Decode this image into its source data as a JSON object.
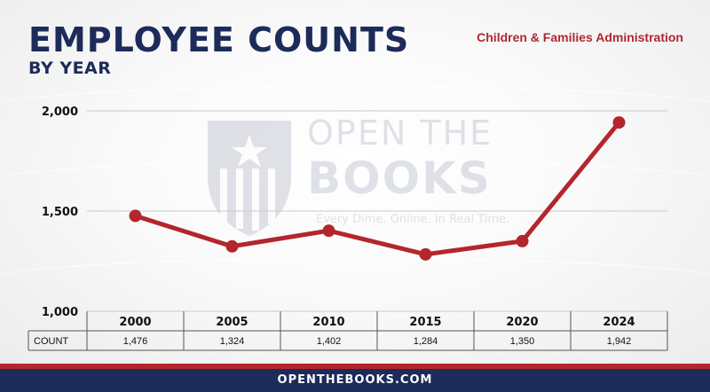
{
  "header": {
    "title": "EMPLOYEE COUNTS",
    "subtitle": "BY YEAR",
    "agency": "Children & Families Administration"
  },
  "watermark": {
    "line1": "OPEN THE",
    "line2": "BOOKS",
    "tagline": "Every Dime. Online. In Real Time."
  },
  "footer": {
    "site": "OPENTHEBOOKS.COM"
  },
  "colors": {
    "navy": "#1c2b5a",
    "red": "#b3262d",
    "line": "#b3262d"
  },
  "chart_data": {
    "type": "line",
    "title": "EMPLOYEE COUNTS",
    "subtitle": "BY YEAR",
    "categories": [
      "2000",
      "2005",
      "2010",
      "2015",
      "2020",
      "2024"
    ],
    "series": [
      {
        "name": "COUNT",
        "values": [
          1476,
          1324,
          1402,
          1284,
          1350,
          1942
        ],
        "labels": [
          "1,476",
          "1,324",
          "1,402",
          "1,284",
          "1,350",
          "1,942"
        ]
      }
    ],
    "yticks": [
      "2,000",
      "1,500",
      "1,000"
    ],
    "ytick_values": [
      2000,
      1500,
      1000
    ],
    "ylim": [
      1000,
      2000
    ],
    "grid": true,
    "table_row_label": "COUNT"
  }
}
